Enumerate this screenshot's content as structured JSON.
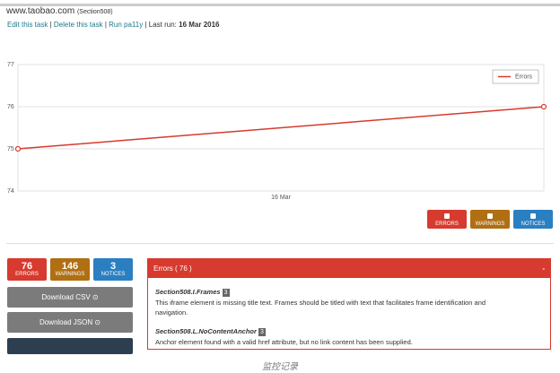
{
  "header": {
    "site": "www.taobao.com",
    "standard": "(Section508)"
  },
  "actions": {
    "links": [
      "Edit this task",
      "Delete this task",
      "Run pa11y"
    ],
    "last_run_label": "Last run:",
    "last_run": "16 Mar 2016"
  },
  "chart_data": {
    "type": "line",
    "x": [
      0,
      1
    ],
    "xlim": [
      0,
      1
    ],
    "xticks": [
      {
        "value": 0.5,
        "label": "16 Mar"
      }
    ],
    "ylim": [
      74,
      77
    ],
    "yticks": [
      74,
      75,
      76,
      77
    ],
    "grid": true,
    "legend": "upper-right",
    "series": [
      {
        "name": "Errors",
        "color": "#d73a2e",
        "values": [
          75,
          76
        ]
      }
    ]
  },
  "filters": [
    "ERRORS",
    "WARNINGS",
    "NOTICES"
  ],
  "stats": [
    {
      "value": 76,
      "label": "ERRORS"
    },
    {
      "value": 146,
      "label": "WARNINGS"
    },
    {
      "value": 3,
      "label": "NOTICES"
    }
  ],
  "downloads": [
    "Download CSV",
    "Download JSON"
  ],
  "panel": {
    "title": "Errors ( 76 )",
    "toggle": "-",
    "issues": [
      {
        "code": "Section508.I.Frames",
        "count": 3,
        "message": "This iframe element is missing title text. Frames should be titled with text that facilitates frame identification and navigation."
      },
      {
        "code": "Section508.L.NoContentAnchor",
        "count": 3,
        "message": "Anchor element found with a valid href attribute, but no link content has been supplied."
      }
    ]
  },
  "caption": "监控记录"
}
